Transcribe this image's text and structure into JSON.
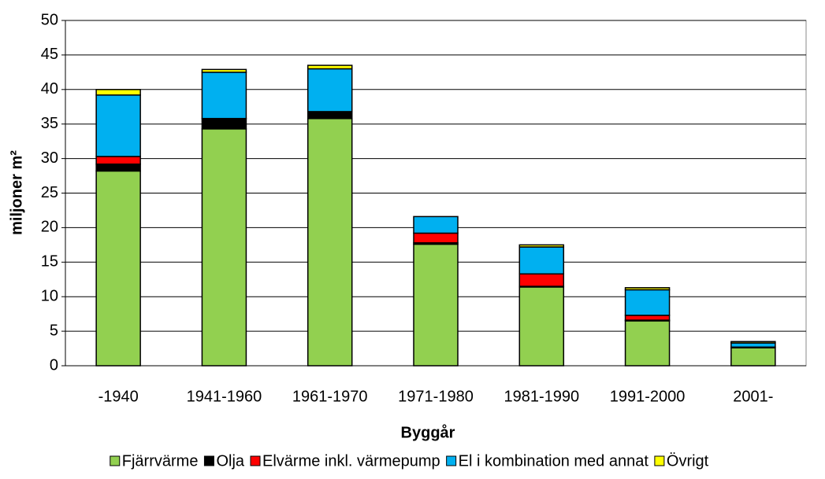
{
  "chart_data": {
    "type": "stacked_bar",
    "xlabel": "Byggår",
    "ylabel": "miljoner m²",
    "categories": [
      "-1940",
      "1941-1960",
      "1961-1970",
      "1971-1980",
      "1981-1990",
      "1991-2000",
      "2001-"
    ],
    "series": [
      {
        "name": "Fjärrvärme",
        "color": "#92d050",
        "values": [
          28.2,
          34.3,
          35.8,
          17.6,
          11.4,
          6.5,
          2.6
        ]
      },
      {
        "name": "Olja",
        "color": "#000000",
        "values": [
          1.0,
          1.5,
          1.0,
          0.2,
          0.1,
          0.1,
          0
        ]
      },
      {
        "name": "Elvärme inkl. värmepump",
        "color": "#ff0000",
        "values": [
          1.1,
          0,
          0,
          1.4,
          1.8,
          0.7,
          0.1
        ]
      },
      {
        "name": "El i kombination med annat",
        "color": "#00b0f0",
        "values": [
          8.9,
          6.7,
          6.2,
          2.4,
          3.9,
          3.7,
          0.6
        ]
      },
      {
        "name": "Övrigt",
        "color": "#ffff00",
        "values": [
          0.8,
          0.4,
          0.5,
          0,
          0.3,
          0.3,
          0.2
        ]
      }
    ],
    "ylim": [
      0,
      50
    ],
    "yticks": [
      0,
      5,
      10,
      15,
      20,
      25,
      30,
      35,
      40,
      45,
      50
    ],
    "grid": true,
    "legend": "bottom"
  }
}
